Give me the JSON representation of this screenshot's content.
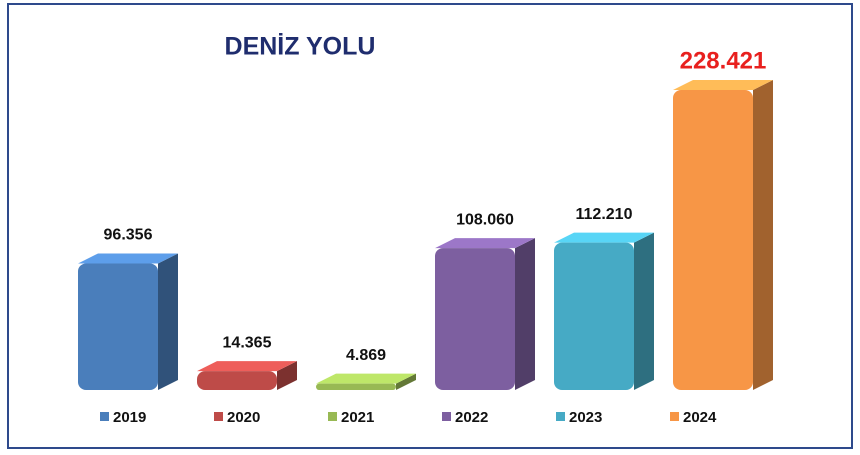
{
  "chart_data": {
    "type": "bar3d",
    "title": "DENİZ YOLU",
    "categories": [
      "2019",
      "2020",
      "2021",
      "2022",
      "2023",
      "2024"
    ],
    "values": [
      96356,
      14365,
      4869,
      108060,
      112210,
      228421
    ],
    "value_labels": [
      "96.356",
      "14.365",
      "4.869",
      "108.060",
      "112.210",
      "228.421"
    ],
    "colors": [
      "#4a7ebb",
      "#be4b48",
      "#98b954",
      "#7d5fa0",
      "#46aac5",
      "#f79646"
    ],
    "legend": "bottom"
  }
}
